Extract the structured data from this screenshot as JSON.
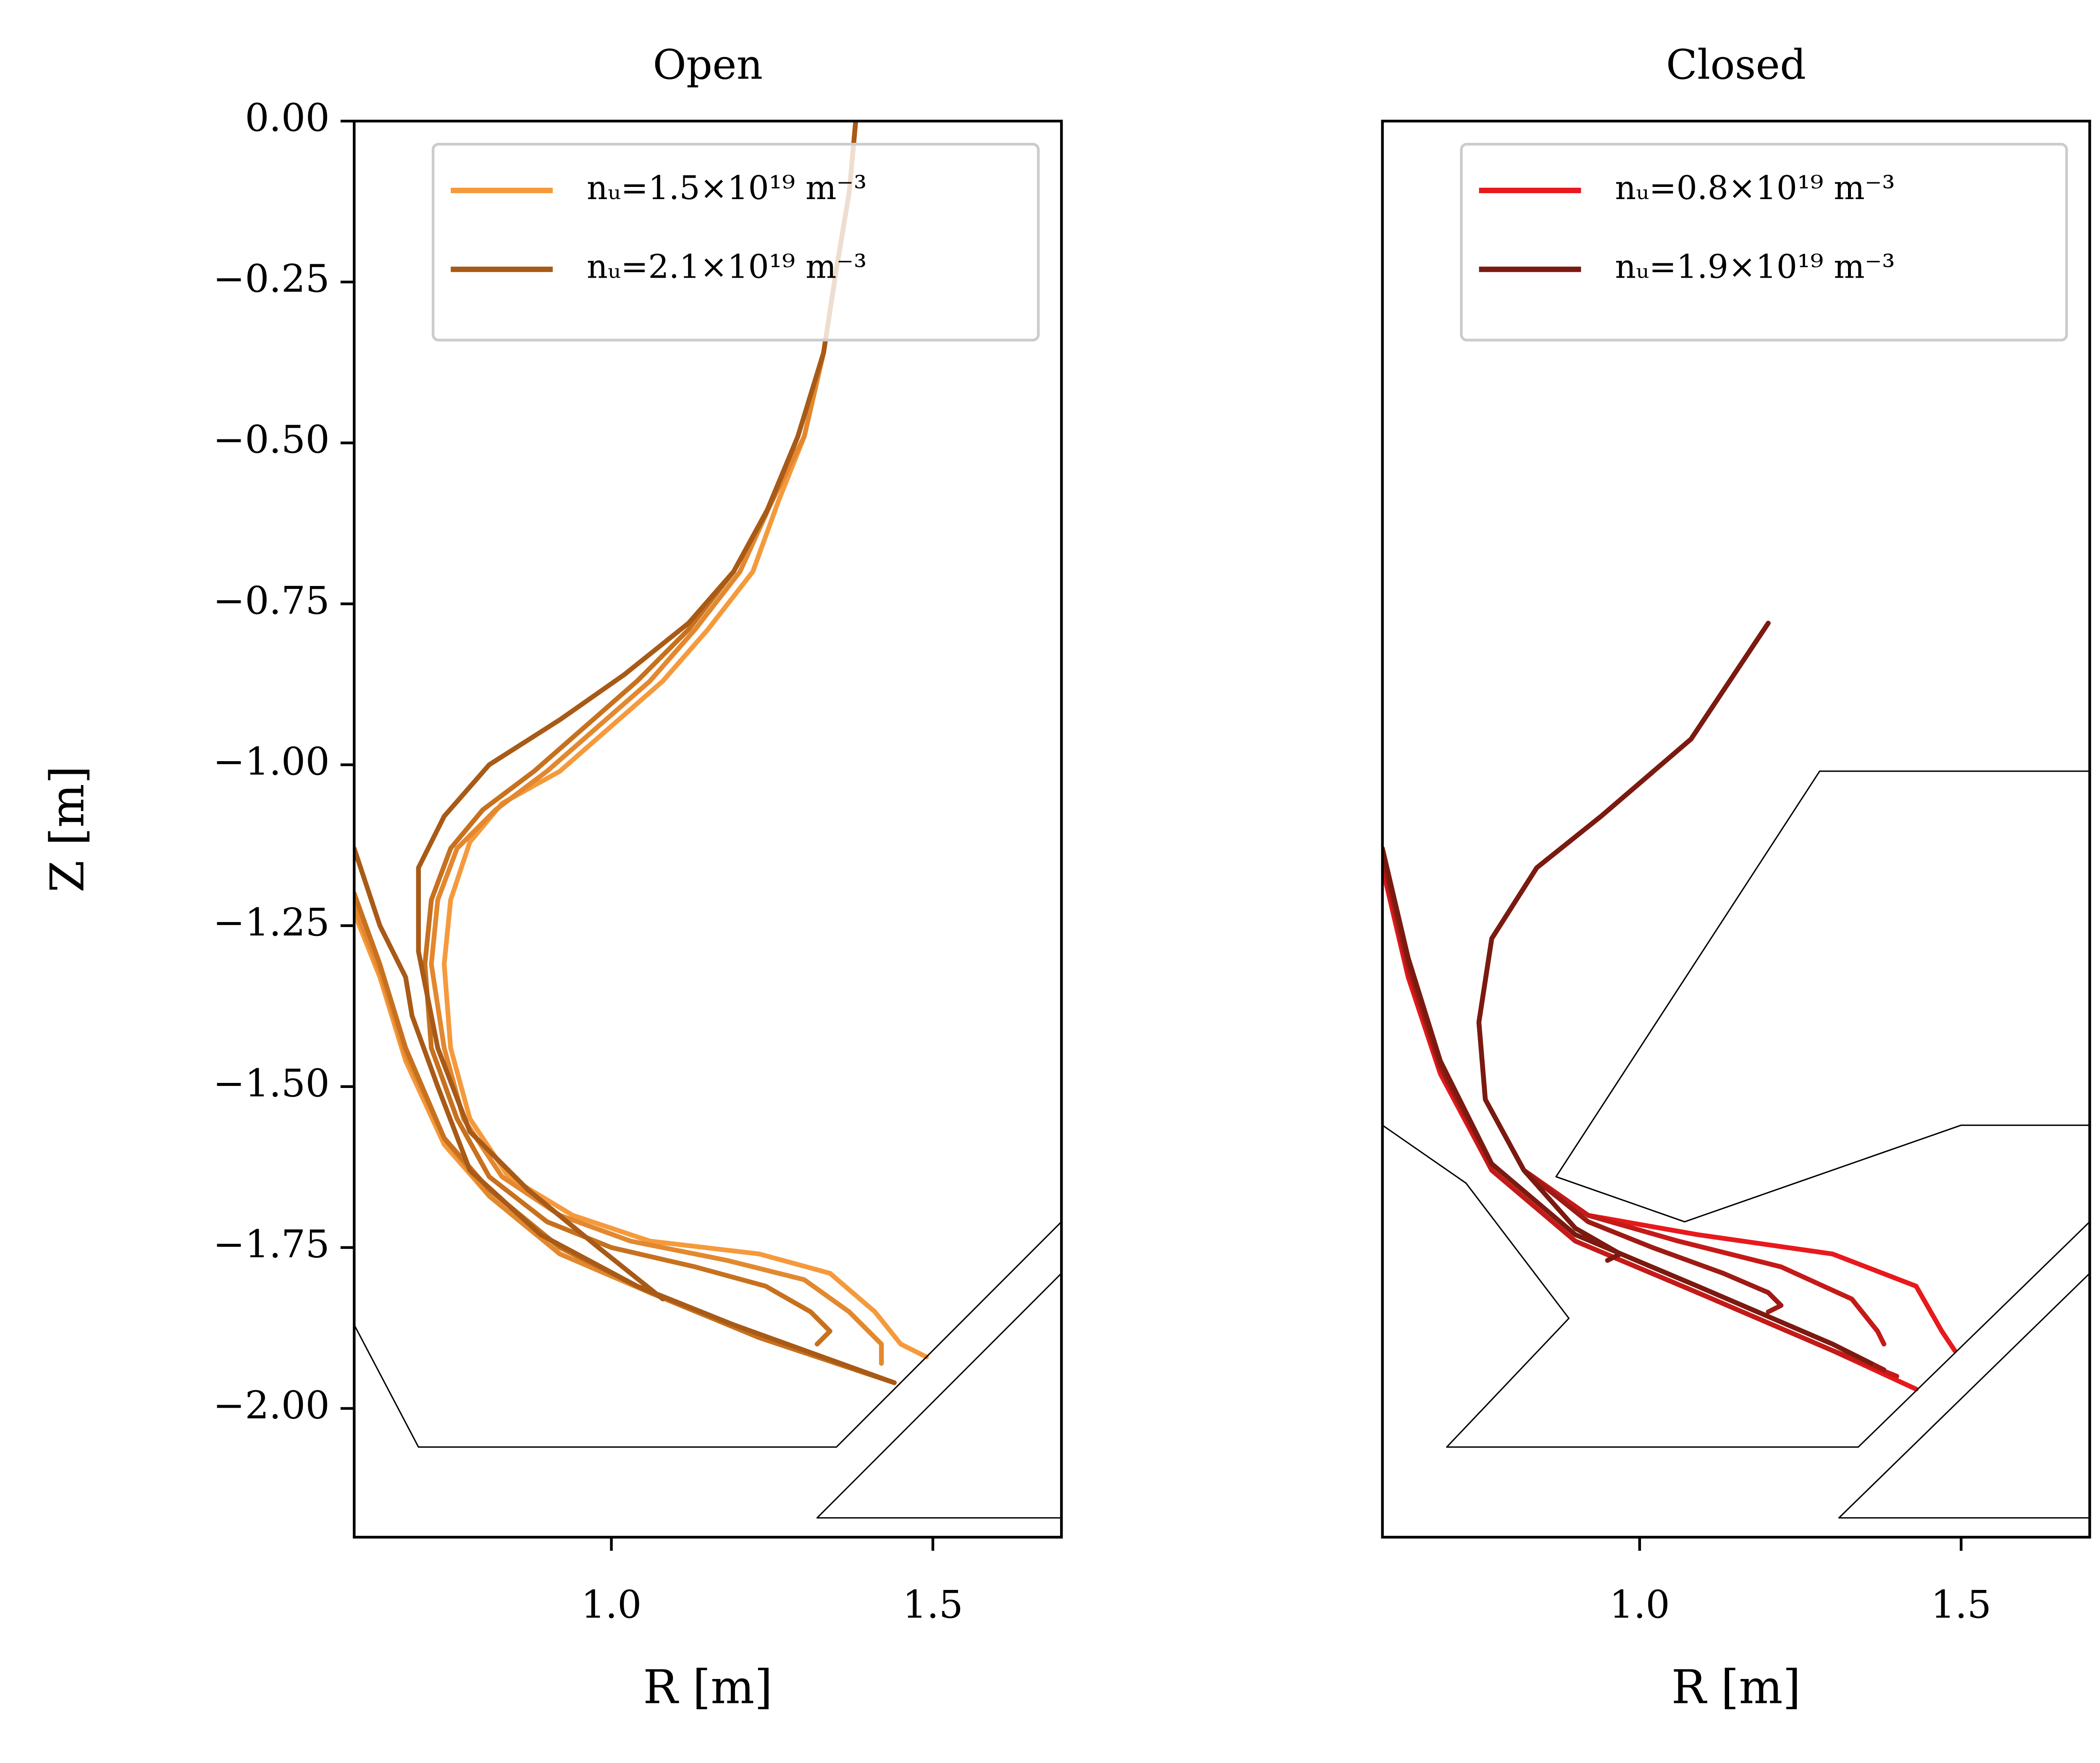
{
  "chart_data": [
    {
      "type": "line",
      "title": "Open",
      "xlabel": "R [m]",
      "ylabel": "Z [m]",
      "xlim": [
        0.6,
        1.7
      ],
      "ylim": [
        -2.2,
        0
      ],
      "xticks": [
        {
          "value": 1.0,
          "label": "1.0"
        },
        {
          "value": 1.5,
          "label": "1.5"
        }
      ],
      "yticks": [
        {
          "value": 0,
          "label": "0.00"
        },
        {
          "value": -0.25,
          "label": "−0.25"
        },
        {
          "value": -0.5,
          "label": "−0.50"
        },
        {
          "value": -0.75,
          "label": "−0.75"
        },
        {
          "value": -1.0,
          "label": "−1.00"
        },
        {
          "value": -1.25,
          "label": "−1.25"
        },
        {
          "value": -1.5,
          "label": "−1.50"
        },
        {
          "value": -1.75,
          "label": "−1.75"
        },
        {
          "value": -2.0,
          "label": "−2.00"
        }
      ],
      "legend": "upper right",
      "series": [
        {
          "name": "nᵤ=1.5×10¹⁹ m⁻³",
          "color": "#f59a3c",
          "linewidth": 3.5,
          "x": [
            1.38,
            1.37,
            1.35,
            1.33,
            1.3,
            1.26,
            1.22,
            1.15,
            1.08,
            1.0,
            0.92,
            0.83,
            0.78,
            0.75,
            0.74,
            0.75,
            0.78,
            0.84,
            0.94,
            1.06,
            1.23,
            1.34,
            1.41,
            1.45,
            1.49,
            null,
            0.6,
            0.64,
            0.68,
            0.74,
            0.81,
            0.92,
            1.06,
            1.23,
            1.44
          ],
          "values": [
            0,
            -0.11,
            -0.23,
            -0.36,
            -0.49,
            -0.59,
            -0.7,
            -0.79,
            -0.87,
            -0.94,
            -1.01,
            -1.06,
            -1.12,
            -1.21,
            -1.31,
            -1.44,
            -1.55,
            -1.64,
            -1.7,
            -1.74,
            -1.76,
            -1.79,
            -1.85,
            -1.9,
            -1.92,
            null,
            -1.23,
            -1.33,
            -1.46,
            -1.59,
            -1.67,
            -1.76,
            -1.82,
            -1.89,
            -1.96
          ]
        },
        {
          "color": "#e3882f",
          "linewidth": 3.5,
          "x": [
            1.38,
            1.37,
            1.35,
            1.33,
            1.3,
            1.25,
            1.2,
            1.13,
            1.06,
            0.98,
            0.9,
            0.82,
            0.76,
            0.73,
            0.72,
            0.74,
            0.77,
            0.83,
            0.92,
            1.03,
            1.18,
            1.3,
            1.37,
            1.42,
            1.42,
            null,
            0.6,
            0.64,
            0.68,
            0.74,
            0.81,
            0.92,
            1.06,
            1.23,
            1.44
          ],
          "values": [
            0,
            -0.11,
            -0.23,
            -0.36,
            -0.49,
            -0.59,
            -0.7,
            -0.79,
            -0.87,
            -0.94,
            -1.01,
            -1.07,
            -1.13,
            -1.21,
            -1.31,
            -1.44,
            -1.55,
            -1.64,
            -1.7,
            -1.74,
            -1.77,
            -1.8,
            -1.85,
            -1.9,
            -1.93,
            null,
            -1.22,
            -1.32,
            -1.45,
            -1.58,
            -1.67,
            -1.76,
            -1.82,
            -1.89,
            -1.96
          ]
        },
        {
          "color": "#c7711f",
          "linewidth": 3.5,
          "x": [
            1.38,
            1.37,
            1.35,
            1.33,
            1.29,
            1.25,
            1.19,
            1.12,
            1.04,
            0.96,
            0.88,
            0.8,
            0.75,
            0.72,
            0.71,
            0.72,
            0.76,
            0.81,
            0.9,
            1.0,
            1.13,
            1.24,
            1.31,
            1.34,
            1.32,
            null,
            0.6,
            0.64,
            0.68,
            0.74,
            0.81,
            0.92,
            1.06,
            1.23,
            1.44
          ],
          "values": [
            0,
            -0.11,
            -0.23,
            -0.36,
            -0.49,
            -0.59,
            -0.7,
            -0.79,
            -0.87,
            -0.94,
            -1.01,
            -1.07,
            -1.13,
            -1.21,
            -1.31,
            -1.44,
            -1.55,
            -1.64,
            -1.71,
            -1.75,
            -1.78,
            -1.81,
            -1.85,
            -1.88,
            -1.9,
            null,
            -1.2,
            -1.31,
            -1.44,
            -1.58,
            -1.66,
            -1.75,
            -1.82,
            -1.89,
            -1.96
          ]
        },
        {
          "name": "nᵤ=2.1×10¹⁹ m⁻³",
          "color": "#a85a17",
          "linewidth": 3.5,
          "x": [
            1.38,
            1.37,
            1.35,
            1.33,
            1.29,
            1.24,
            1.19,
            1.12,
            1.02,
            0.92,
            0.81,
            0.74,
            0.7,
            0.7,
            0.73,
            0.78,
            0.87,
            0.98,
            1.08,
            null,
            0.6,
            0.64,
            0.68,
            0.69,
            0.73,
            0.78,
            0.89,
            1.04,
            1.19,
            1.44
          ],
          "values": [
            0,
            -0.11,
            -0.23,
            -0.36,
            -0.49,
            -0.61,
            -0.7,
            -0.78,
            -0.86,
            -0.93,
            -1.0,
            -1.08,
            -1.16,
            -1.29,
            -1.44,
            -1.57,
            -1.66,
            -1.75,
            -1.83,
            null,
            -1.13,
            -1.25,
            -1.33,
            -1.39,
            -1.5,
            -1.63,
            -1.73,
            -1.81,
            -1.87,
            -1.96
          ]
        },
        {
          "color": "#000000",
          "linewidth": 1,
          "x": [
            0.6,
            0.7,
            1.35,
            1.7
          ],
          "values": [
            -1.87,
            -2.06,
            -2.06,
            -1.71
          ]
        },
        {
          "color": "#000000",
          "linewidth": 1,
          "x": [
            1.7,
            1.32,
            1.7
          ],
          "values": [
            -1.79,
            -2.17,
            -2.17
          ]
        }
      ]
    },
    {
      "type": "line",
      "title": "Closed",
      "xlabel": "R [m]",
      "xlim": [
        0.6,
        1.7
      ],
      "ylim": [
        -2.2,
        0
      ],
      "xticks": [
        {
          "value": 1.0,
          "label": "1.0"
        },
        {
          "value": 1.5,
          "label": "1.5"
        }
      ],
      "legend": "upper right",
      "series": [
        {
          "name": "nᵤ=0.8×10¹⁹ m⁻³",
          "color": "#e8191c",
          "linewidth": 3.5,
          "x": [
            1.2,
            1.08,
            0.94,
            0.84,
            0.77,
            0.75,
            0.76,
            0.82,
            0.92,
            1.09,
            1.3,
            1.43,
            1.47,
            1.49,
            null,
            0.6,
            0.64,
            0.69,
            0.77,
            0.9,
            1.09,
            1.3,
            1.43
          ],
          "values": [
            -0.78,
            -0.96,
            -1.08,
            -1.16,
            -1.27,
            -1.4,
            -1.52,
            -1.63,
            -1.7,
            -1.73,
            -1.76,
            -1.81,
            -1.88,
            -1.91,
            null,
            -1.16,
            -1.33,
            -1.48,
            -1.63,
            -1.74,
            -1.82,
            -1.91,
            -1.97
          ]
        },
        {
          "color": "#c41a18",
          "linewidth": 3.5,
          "x": [
            1.2,
            1.08,
            0.94,
            0.84,
            0.77,
            0.75,
            0.76,
            0.82,
            0.92,
            1.06,
            1.22,
            1.33,
            1.37,
            1.38,
            null,
            0.6,
            0.64,
            0.69,
            0.77,
            0.9,
            1.09,
            1.3,
            1.4
          ],
          "values": [
            -0.78,
            -0.96,
            -1.08,
            -1.16,
            -1.27,
            -1.4,
            -1.52,
            -1.63,
            -1.7,
            -1.74,
            -1.78,
            -1.83,
            -1.88,
            -1.9,
            null,
            -1.15,
            -1.32,
            -1.47,
            -1.63,
            -1.74,
            -1.82,
            -1.91,
            -1.95
          ]
        },
        {
          "color": "#9e1a14",
          "linewidth": 3.5,
          "x": [
            1.2,
            1.08,
            0.94,
            0.84,
            0.77,
            0.75,
            0.76,
            0.82,
            0.92,
            1.02,
            1.13,
            1.2,
            1.22,
            1.2,
            null,
            0.6,
            0.64,
            0.69,
            0.77,
            0.9,
            1.09,
            1.3,
            1.38
          ],
          "values": [
            -0.78,
            -0.96,
            -1.08,
            -1.16,
            -1.27,
            -1.4,
            -1.52,
            -1.63,
            -1.71,
            -1.75,
            -1.79,
            -1.82,
            -1.84,
            -1.85,
            null,
            -1.14,
            -1.31,
            -1.47,
            -1.62,
            -1.73,
            -1.81,
            -1.9,
            -1.94
          ]
        },
        {
          "name": "nᵤ=1.9×10¹⁹ m⁻³",
          "color": "#7a1a10",
          "linewidth": 3.5,
          "x": [
            1.2,
            1.08,
            0.94,
            0.84,
            0.77,
            0.75,
            0.76,
            0.82,
            0.9,
            0.97,
            0.95,
            null,
            0.6,
            0.64,
            0.69,
            0.77,
            0.9,
            1.09,
            1.3,
            1.36
          ],
          "values": [
            -0.78,
            -0.96,
            -1.08,
            -1.16,
            -1.27,
            -1.4,
            -1.52,
            -1.63,
            -1.72,
            -1.76,
            -1.77,
            null,
            -1.13,
            -1.3,
            -1.46,
            -1.62,
            -1.73,
            -1.81,
            -1.9,
            -1.93
          ]
        },
        {
          "color": "#000000",
          "linewidth": 1,
          "x": [
            0.6,
            0.73,
            0.89,
            0.7,
            1.34,
            1.7
          ],
          "values": [
            -1.56,
            -1.65,
            -1.86,
            -2.06,
            -2.06,
            -1.71
          ]
        },
        {
          "color": "#000000",
          "linewidth": 1,
          "x": [
            1.7,
            1.31,
            1.7
          ],
          "values": [
            -1.79,
            -2.17,
            -2.17
          ]
        },
        {
          "color": "#000000",
          "linewidth": 1,
          "x": [
            1.7,
            1.28,
            0.87,
            1.07,
            1.5,
            1.7
          ],
          "values": [
            -1.01,
            -1.01,
            -1.64,
            -1.71,
            -1.56,
            -1.56
          ]
        }
      ]
    }
  ]
}
